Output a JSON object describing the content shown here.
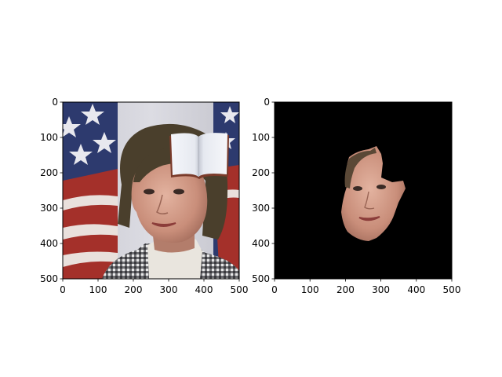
{
  "chart_data": [
    {
      "type": "image",
      "title": "",
      "xlabel": "",
      "ylabel": "",
      "xlim": [
        0,
        500
      ],
      "ylim": [
        500,
        0
      ],
      "xticks": [
        0,
        100,
        200,
        300,
        400,
        500
      ],
      "yticks": [
        0,
        100,
        200,
        300,
        400,
        500
      ],
      "content": "photo",
      "overlay": {
        "kind": "open-book-icon",
        "x_range": [
          305,
          470
        ],
        "y_range": [
          95,
          220
        ]
      }
    },
    {
      "type": "image",
      "title": "",
      "xlabel": "",
      "ylabel": "",
      "xlim": [
        0,
        500
      ],
      "ylim": [
        500,
        0
      ],
      "xticks": [
        0,
        100,
        200,
        300,
        400,
        500
      ],
      "yticks": [
        0,
        100,
        200,
        300,
        400,
        500
      ],
      "content": "masked-face",
      "background_color": "#000000"
    }
  ]
}
